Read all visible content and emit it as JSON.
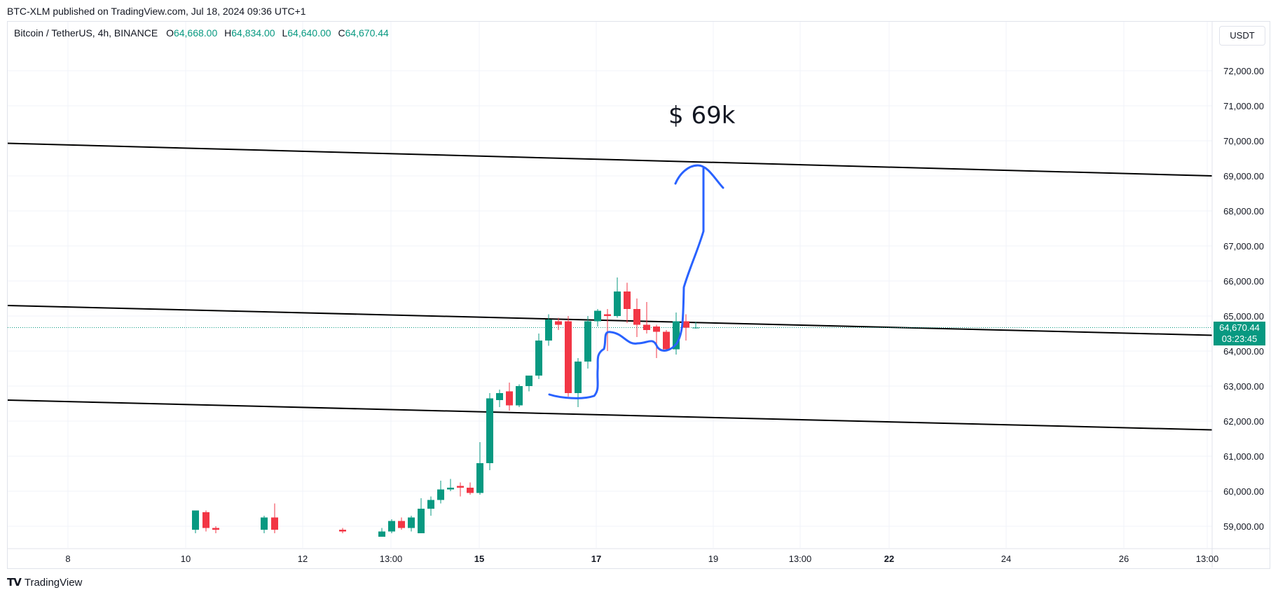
{
  "header": {
    "publisher_line": "BTC-XLM published on TradingView.com, Jul 18, 2024 09:36 UTC+1"
  },
  "legend": {
    "symbol": "Bitcoin / TetherUS, 4h, BINANCE",
    "open_label": "O",
    "open": "64,668.00",
    "high_label": "H",
    "high": "64,834.00",
    "low_label": "L",
    "low": "64,640.00",
    "close_label": "C",
    "close": "64,670.44"
  },
  "currency_button": "USDT",
  "price_tag": {
    "price": "64,670.44",
    "countdown": "03:23:45"
  },
  "annotation": {
    "text": "$ 69k"
  },
  "footer": {
    "brand": "TradingView"
  },
  "colors": {
    "up": "#089981",
    "down": "#f23645",
    "drawing": "#2962ff",
    "trendline": "#000000"
  },
  "chart_data": {
    "type": "candlestick",
    "ylim": [
      58500,
      73000
    ],
    "y_ticks": [
      "59,000.00",
      "60,000.00",
      "61,000.00",
      "62,000.00",
      "63,000.00",
      "64,000.00",
      "65,000.00",
      "66,000.00",
      "67,000.00",
      "68,000.00",
      "69,000.00",
      "70,000.00",
      "71,000.00",
      "72,000.00"
    ],
    "x_ticks": [
      "8",
      "10",
      "12",
      "13:00",
      "15",
      "17",
      "19",
      "13:00",
      "22",
      "24",
      "26",
      "13:00"
    ],
    "x_ticks_bold": [
      "15",
      "17",
      "22"
    ],
    "last_price": 64670.44,
    "candles": [
      {
        "t": "Jul 10",
        "o": 58900,
        "h": 59450,
        "l": 58800,
        "c": 59450
      },
      {
        "t": "Jul 10",
        "o": 59400,
        "h": 59450,
        "l": 58850,
        "c": 58950
      },
      {
        "t": "Jul 10",
        "o": 58950,
        "h": 59000,
        "l": 58800,
        "c": 58900
      },
      {
        "t": "Jul 11",
        "o": 58900,
        "h": 59300,
        "l": 58800,
        "c": 59250
      },
      {
        "t": "Jul 11",
        "o": 59250,
        "h": 59650,
        "l": 58800,
        "c": 58900
      },
      {
        "t": "Jul 12",
        "o": 58900,
        "h": 58950,
        "l": 58800,
        "c": 58850
      },
      {
        "t": "Jul 13",
        "o": 58700,
        "h": 58950,
        "l": 58700,
        "c": 58850
      },
      {
        "t": "Jul 13",
        "o": 58850,
        "h": 59200,
        "l": 58800,
        "c": 59150
      },
      {
        "t": "Jul 13",
        "o": 59150,
        "h": 59250,
        "l": 58900,
        "c": 58950
      },
      {
        "t": "Jul 13",
        "o": 58950,
        "h": 59300,
        "l": 58850,
        "c": 59250
      },
      {
        "t": "Jul 14",
        "o": 58800,
        "h": 59800,
        "l": 58800,
        "c": 59500
      },
      {
        "t": "Jul 14",
        "o": 59500,
        "h": 59850,
        "l": 59300,
        "c": 59750
      },
      {
        "t": "Jul 14",
        "o": 59750,
        "h": 60300,
        "l": 59650,
        "c": 60050
      },
      {
        "t": "Jul 14",
        "o": 60050,
        "h": 60350,
        "l": 60000,
        "c": 60100
      },
      {
        "t": "Jul 14",
        "o": 60150,
        "h": 60250,
        "l": 59850,
        "c": 60100
      },
      {
        "t": "Jul 14",
        "o": 60100,
        "h": 60250,
        "l": 59900,
        "c": 59950
      },
      {
        "t": "Jul 14",
        "o": 59950,
        "h": 61400,
        "l": 59900,
        "c": 60800
      },
      {
        "t": "Jul 15",
        "o": 60800,
        "h": 62800,
        "l": 60600,
        "c": 62650
      },
      {
        "t": "Jul 15",
        "o": 62600,
        "h": 62900,
        "l": 62400,
        "c": 62800
      },
      {
        "t": "Jul 15",
        "o": 62850,
        "h": 63100,
        "l": 62300,
        "c": 62450
      },
      {
        "t": "Jul 15",
        "o": 62450,
        "h": 63050,
        "l": 62400,
        "c": 63000
      },
      {
        "t": "Jul 15",
        "o": 63000,
        "h": 63300,
        "l": 62850,
        "c": 63300
      },
      {
        "t": "Jul 16",
        "o": 63300,
        "h": 64500,
        "l": 63200,
        "c": 64300
      },
      {
        "t": "Jul 16",
        "o": 64300,
        "h": 65050,
        "l": 64150,
        "c": 64900
      },
      {
        "t": "Jul 16",
        "o": 64850,
        "h": 64950,
        "l": 64600,
        "c": 64750
      },
      {
        "t": "Jul 16",
        "o": 64850,
        "h": 65000,
        "l": 62700,
        "c": 62800
      },
      {
        "t": "Jul 16",
        "o": 62800,
        "h": 63800,
        "l": 62400,
        "c": 63700
      },
      {
        "t": "Jul 16",
        "o": 63700,
        "h": 65000,
        "l": 63500,
        "c": 64850
      },
      {
        "t": "Jul 17",
        "o": 64850,
        "h": 65200,
        "l": 64700,
        "c": 65150
      },
      {
        "t": "Jul 17",
        "o": 65050,
        "h": 65200,
        "l": 64000,
        "c": 65000
      },
      {
        "t": "Jul 17",
        "o": 65000,
        "h": 66100,
        "l": 64950,
        "c": 65700
      },
      {
        "t": "Jul 17",
        "o": 65700,
        "h": 65950,
        "l": 64800,
        "c": 65200
      },
      {
        "t": "Jul 17",
        "o": 65200,
        "h": 65500,
        "l": 64400,
        "c": 64750
      },
      {
        "t": "Jul 17",
        "o": 64750,
        "h": 65400,
        "l": 64500,
        "c": 64600
      },
      {
        "t": "Jul 18",
        "o": 64700,
        "h": 64750,
        "l": 63800,
        "c": 64550
      },
      {
        "t": "Jul 18",
        "o": 64550,
        "h": 64600,
        "l": 64000,
        "c": 64050
      },
      {
        "t": "Jul 18",
        "o": 64050,
        "h": 65100,
        "l": 63900,
        "c": 64850
      },
      {
        "t": "Jul 18",
        "o": 64850,
        "h": 65050,
        "l": 64300,
        "c": 64668
      },
      {
        "t": "Jul 18",
        "o": 64668,
        "h": 64834,
        "l": 64640,
        "c": 64670.44
      }
    ],
    "trendlines": [
      {
        "from": {
          "t": "Jul 7",
          "price": 69930
        },
        "to": {
          "t": "Jul 27",
          "price": 69000
        }
      },
      {
        "from": {
          "t": "Jul 7",
          "price": 65300
        },
        "to": {
          "t": "Jul 27",
          "price": 64450
        }
      },
      {
        "from": {
          "t": "Jul 7",
          "price": 62600
        },
        "to": {
          "t": "Jul 27",
          "price": 61750
        }
      }
    ]
  }
}
